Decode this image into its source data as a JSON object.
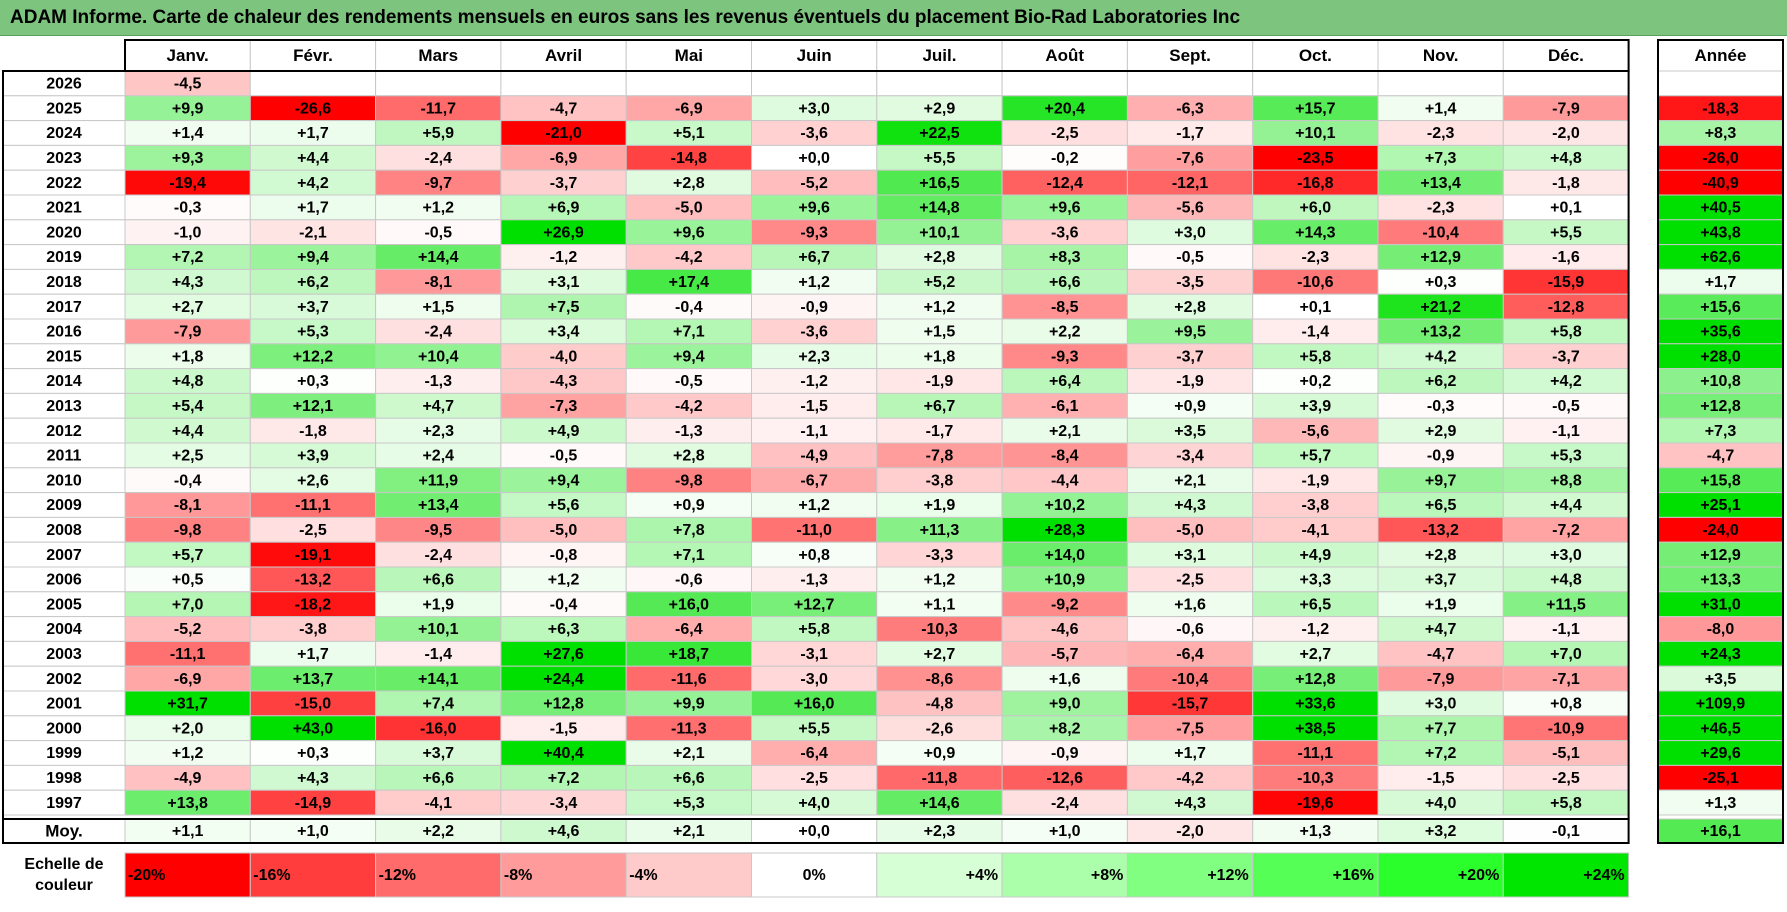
{
  "title": "ADAM Informe. Carte de chaleur des rendements mensuels en euros sans les revenus éventuels du placement Bio-Rad Laboratories Inc",
  "chart_data": {
    "type": "heatmap",
    "title": "ADAM Informe. Carte de chaleur des rendements mensuels en euros sans les revenus éventuels du placement Bio-Rad Laboratories Inc",
    "columns": [
      "Janv.",
      "Févr.",
      "Mars",
      "Avril",
      "Mai",
      "Juin",
      "Juil.",
      "Août",
      "Sept.",
      "Oct.",
      "Nov.",
      "Déc."
    ],
    "annual_label": "Année",
    "average_label": "Moy.",
    "rows": [
      {
        "year": "2026",
        "values": [
          -4.5,
          null,
          null,
          null,
          null,
          null,
          null,
          null,
          null,
          null,
          null,
          null
        ],
        "annual": null
      },
      {
        "year": "2025",
        "values": [
          9.9,
          -26.6,
          -11.7,
          -4.7,
          -6.9,
          3.0,
          2.9,
          20.4,
          -6.3,
          15.7,
          1.4,
          -7.9
        ],
        "annual": -18.3
      },
      {
        "year": "2024",
        "values": [
          1.4,
          1.7,
          5.9,
          -21.0,
          5.1,
          -3.6,
          22.5,
          -2.5,
          -1.7,
          10.1,
          -2.3,
          -2.0
        ],
        "annual": 8.3
      },
      {
        "year": "2023",
        "values": [
          9.3,
          4.4,
          -2.4,
          -6.9,
          -14.8,
          0.0,
          5.5,
          -0.2,
          -7.6,
          -23.5,
          7.3,
          4.8
        ],
        "annual": -26.0
      },
      {
        "year": "2022",
        "values": [
          -19.4,
          4.2,
          -9.7,
          -3.7,
          2.8,
          -5.2,
          16.5,
          -12.4,
          -12.1,
          -16.8,
          13.4,
          -1.8
        ],
        "annual": -40.9
      },
      {
        "year": "2021",
        "values": [
          -0.3,
          1.7,
          1.2,
          6.9,
          -5.0,
          9.6,
          14.8,
          9.6,
          -5.6,
          6.0,
          -2.3,
          0.1
        ],
        "annual": 40.5
      },
      {
        "year": "2020",
        "values": [
          -1.0,
          -2.1,
          -0.5,
          26.9,
          9.6,
          -9.3,
          10.1,
          -3.6,
          3.0,
          14.3,
          -10.4,
          5.5
        ],
        "annual": 43.8
      },
      {
        "year": "2019",
        "values": [
          7.2,
          9.4,
          14.4,
          -1.2,
          -4.2,
          6.7,
          2.8,
          8.3,
          -0.5,
          -2.3,
          12.9,
          -1.6
        ],
        "annual": 62.6
      },
      {
        "year": "2018",
        "values": [
          4.3,
          6.2,
          -8.1,
          3.1,
          17.4,
          1.2,
          5.2,
          6.6,
          -3.5,
          -10.6,
          0.3,
          -15.9
        ],
        "annual": 1.7
      },
      {
        "year": "2017",
        "values": [
          2.7,
          3.7,
          1.5,
          7.5,
          -0.4,
          -0.9,
          1.2,
          -8.5,
          2.8,
          0.1,
          21.2,
          -12.8
        ],
        "annual": 15.6
      },
      {
        "year": "2016",
        "values": [
          -7.9,
          5.3,
          -2.4,
          3.4,
          7.1,
          -3.6,
          1.5,
          2.2,
          9.5,
          -1.4,
          13.2,
          5.8
        ],
        "annual": 35.6
      },
      {
        "year": "2015",
        "values": [
          1.8,
          12.2,
          10.4,
          -4.0,
          9.4,
          2.3,
          1.8,
          -9.3,
          -3.7,
          5.8,
          4.2,
          -3.7
        ],
        "annual": 28.0
      },
      {
        "year": "2014",
        "values": [
          4.8,
          0.3,
          -1.3,
          -4.3,
          -0.5,
          -1.2,
          -1.9,
          6.4,
          -1.9,
          0.2,
          6.2,
          4.2
        ],
        "annual": 10.8
      },
      {
        "year": "2013",
        "values": [
          5.4,
          12.1,
          4.7,
          -7.3,
          -4.2,
          -1.5,
          6.7,
          -6.1,
          0.9,
          3.9,
          -0.3,
          -0.5
        ],
        "annual": 12.8
      },
      {
        "year": "2012",
        "values": [
          4.4,
          -1.8,
          2.3,
          4.9,
          -1.3,
          -1.1,
          -1.7,
          2.1,
          3.5,
          -5.6,
          2.9,
          -1.1
        ],
        "annual": 7.3
      },
      {
        "year": "2011",
        "values": [
          2.5,
          3.9,
          2.4,
          -0.5,
          2.8,
          -4.9,
          -7.8,
          -8.4,
          -3.4,
          5.7,
          -0.9,
          5.3
        ],
        "annual": -4.7
      },
      {
        "year": "2010",
        "values": [
          -0.4,
          2.6,
          11.9,
          9.4,
          -9.8,
          -6.7,
          -3.8,
          -4.4,
          2.1,
          -1.9,
          9.7,
          8.8
        ],
        "annual": 15.8
      },
      {
        "year": "2009",
        "values": [
          -8.1,
          -11.1,
          13.4,
          5.6,
          0.9,
          1.2,
          1.9,
          10.2,
          4.3,
          -3.8,
          6.5,
          4.4
        ],
        "annual": 25.1
      },
      {
        "year": "2008",
        "values": [
          -9.8,
          -2.5,
          -9.5,
          -5.0,
          7.8,
          -11.0,
          11.3,
          28.3,
          -5.0,
          -4.1,
          -13.2,
          -7.2
        ],
        "annual": -24.0
      },
      {
        "year": "2007",
        "values": [
          5.7,
          -19.1,
          -2.4,
          -0.8,
          7.1,
          0.8,
          -3.3,
          14.0,
          3.1,
          4.9,
          2.8,
          3.0
        ],
        "annual": 12.9
      },
      {
        "year": "2006",
        "values": [
          0.5,
          -13.2,
          6.6,
          1.2,
          -0.6,
          -1.3,
          1.2,
          10.9,
          -2.5,
          3.3,
          3.7,
          4.8
        ],
        "annual": 13.3
      },
      {
        "year": "2005",
        "values": [
          7.0,
          -18.2,
          1.9,
          -0.4,
          16.0,
          12.7,
          1.1,
          -9.2,
          1.6,
          6.5,
          1.9,
          11.5
        ],
        "annual": 31.0
      },
      {
        "year": "2004",
        "values": [
          -5.2,
          -3.8,
          10.1,
          6.3,
          -6.4,
          5.8,
          -10.3,
          -4.6,
          -0.6,
          -1.2,
          4.7,
          -1.1
        ],
        "annual": -8.0
      },
      {
        "year": "2003",
        "values": [
          -11.1,
          1.7,
          -1.4,
          27.6,
          18.7,
          -3.1,
          2.7,
          -5.7,
          -6.4,
          2.7,
          -4.7,
          7.0
        ],
        "annual": 24.3
      },
      {
        "year": "2002",
        "values": [
          -6.9,
          13.7,
          14.1,
          24.4,
          -11.6,
          -3.0,
          -8.6,
          1.6,
          -10.4,
          12.8,
          -7.9,
          -7.1
        ],
        "annual": 3.5
      },
      {
        "year": "2001",
        "values": [
          31.7,
          -15.0,
          7.4,
          12.8,
          9.9,
          16.0,
          -4.8,
          9.0,
          -15.7,
          33.6,
          3.0,
          0.8
        ],
        "annual": 109.9
      },
      {
        "year": "2000",
        "values": [
          2.0,
          43.0,
          -16.0,
          -1.5,
          -11.3,
          5.5,
          -2.6,
          8.2,
          -7.5,
          38.5,
          7.7,
          -10.9
        ],
        "annual": 46.5
      },
      {
        "year": "1999",
        "values": [
          1.2,
          0.3,
          3.7,
          40.4,
          2.1,
          -6.4,
          0.9,
          -0.9,
          1.7,
          -11.1,
          7.2,
          -5.1
        ],
        "annual": 29.6
      },
      {
        "year": "1998",
        "values": [
          -4.9,
          4.3,
          6.6,
          7.2,
          6.6,
          -2.5,
          -11.8,
          -12.6,
          -4.2,
          -10.3,
          -1.5,
          -2.5
        ],
        "annual": -25.1
      },
      {
        "year": "1997",
        "values": [
          13.8,
          -14.9,
          -4.1,
          -3.4,
          5.3,
          4.0,
          14.6,
          -2.4,
          4.3,
          -19.6,
          4.0,
          5.8
        ],
        "annual": 1.3
      }
    ],
    "average": {
      "values": [
        1.1,
        1.0,
        2.2,
        4.6,
        2.1,
        0.0,
        2.3,
        1.0,
        -2.0,
        1.3,
        3.2,
        -0.1
      ],
      "annual": 16.1
    },
    "color_scale": {
      "label_line1": "Echelle de",
      "label_line2": "couleur",
      "stops": [
        {
          "value": -20,
          "label": "-20%",
          "color": "#ff0000"
        },
        {
          "value": -16,
          "label": "-16%",
          "color": "#ff3d3d"
        },
        {
          "value": -12,
          "label": "-12%",
          "color": "#ff6b6b"
        },
        {
          "value": -8,
          "label": "-8%",
          "color": "#ff9b9b"
        },
        {
          "value": -4,
          "label": "-4%",
          "color": "#ffcaca"
        },
        {
          "value": 0,
          "label": "0%",
          "color": "#ffffff"
        },
        {
          "value": 4,
          "label": "+4%",
          "color": "#d6ffd6"
        },
        {
          "value": 8,
          "label": "+8%",
          "color": "#abffab"
        },
        {
          "value": 12,
          "label": "+12%",
          "color": "#80ff80"
        },
        {
          "value": 16,
          "label": "+16%",
          "color": "#55ff55"
        },
        {
          "value": 20,
          "label": "+20%",
          "color": "#2bff2b"
        },
        {
          "value": 24,
          "label": "+24%",
          "color": "#00e600"
        }
      ]
    }
  },
  "colors": {
    "title_bar": "#7dc47f",
    "negative_max": "#ff0000",
    "positive_max": "#00e000",
    "neutral": "#ffffff",
    "grid": "#c8c8c8",
    "border": "#000000"
  }
}
